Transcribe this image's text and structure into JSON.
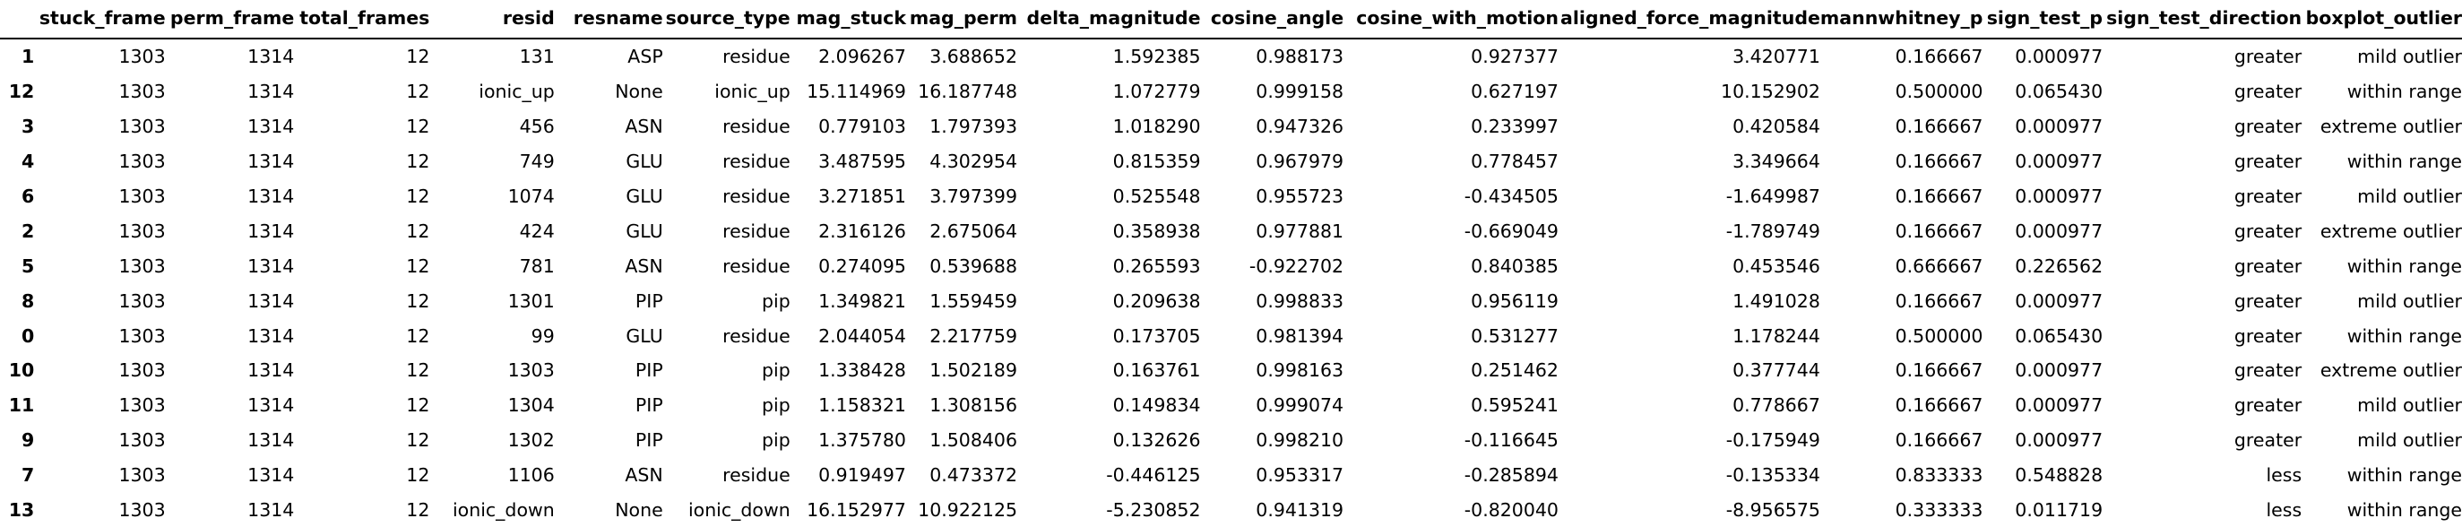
{
  "table": {
    "columns": [
      "",
      "stuck_frame",
      "perm_frame",
      "total_frames",
      "resid",
      "resname",
      "source_type",
      "mag_stuck",
      "mag_perm",
      "delta_magnitude",
      "cosine_angle",
      "cosine_with_motion",
      "aligned_force_magnitude",
      "mannwhitney_p",
      "sign_test_p",
      "sign_test_direction",
      "boxplot_outlier"
    ],
    "rows": [
      [
        "1",
        "1303",
        "1314",
        "12",
        "131",
        "ASP",
        "residue",
        "2.096267",
        "3.688652",
        "1.592385",
        "0.988173",
        "0.927377",
        "3.420771",
        "0.166667",
        "0.000977",
        "greater",
        "mild outlier"
      ],
      [
        "12",
        "1303",
        "1314",
        "12",
        "ionic_up",
        "None",
        "ionic_up",
        "15.114969",
        "16.187748",
        "1.072779",
        "0.999158",
        "0.627197",
        "10.152902",
        "0.500000",
        "0.065430",
        "greater",
        "within range"
      ],
      [
        "3",
        "1303",
        "1314",
        "12",
        "456",
        "ASN",
        "residue",
        "0.779103",
        "1.797393",
        "1.018290",
        "0.947326",
        "0.233997",
        "0.420584",
        "0.166667",
        "0.000977",
        "greater",
        "extreme outlier"
      ],
      [
        "4",
        "1303",
        "1314",
        "12",
        "749",
        "GLU",
        "residue",
        "3.487595",
        "4.302954",
        "0.815359",
        "0.967979",
        "0.778457",
        "3.349664",
        "0.166667",
        "0.000977",
        "greater",
        "within range"
      ],
      [
        "6",
        "1303",
        "1314",
        "12",
        "1074",
        "GLU",
        "residue",
        "3.271851",
        "3.797399",
        "0.525548",
        "0.955723",
        "-0.434505",
        "-1.649987",
        "0.166667",
        "0.000977",
        "greater",
        "mild outlier"
      ],
      [
        "2",
        "1303",
        "1314",
        "12",
        "424",
        "GLU",
        "residue",
        "2.316126",
        "2.675064",
        "0.358938",
        "0.977881",
        "-0.669049",
        "-1.789749",
        "0.166667",
        "0.000977",
        "greater",
        "extreme outlier"
      ],
      [
        "5",
        "1303",
        "1314",
        "12",
        "781",
        "ASN",
        "residue",
        "0.274095",
        "0.539688",
        "0.265593",
        "-0.922702",
        "0.840385",
        "0.453546",
        "0.666667",
        "0.226562",
        "greater",
        "within range"
      ],
      [
        "8",
        "1303",
        "1314",
        "12",
        "1301",
        "PIP",
        "pip",
        "1.349821",
        "1.559459",
        "0.209638",
        "0.998833",
        "0.956119",
        "1.491028",
        "0.166667",
        "0.000977",
        "greater",
        "mild outlier"
      ],
      [
        "0",
        "1303",
        "1314",
        "12",
        "99",
        "GLU",
        "residue",
        "2.044054",
        "2.217759",
        "0.173705",
        "0.981394",
        "0.531277",
        "1.178244",
        "0.500000",
        "0.065430",
        "greater",
        "within range"
      ],
      [
        "10",
        "1303",
        "1314",
        "12",
        "1303",
        "PIP",
        "pip",
        "1.338428",
        "1.502189",
        "0.163761",
        "0.998163",
        "0.251462",
        "0.377744",
        "0.166667",
        "0.000977",
        "greater",
        "extreme outlier"
      ],
      [
        "11",
        "1303",
        "1314",
        "12",
        "1304",
        "PIP",
        "pip",
        "1.158321",
        "1.308156",
        "0.149834",
        "0.999074",
        "0.595241",
        "0.778667",
        "0.166667",
        "0.000977",
        "greater",
        "mild outlier"
      ],
      [
        "9",
        "1303",
        "1314",
        "12",
        "1302",
        "PIP",
        "pip",
        "1.375780",
        "1.508406",
        "0.132626",
        "0.998210",
        "-0.116645",
        "-0.175949",
        "0.166667",
        "0.000977",
        "greater",
        "mild outlier"
      ],
      [
        "7",
        "1303",
        "1314",
        "12",
        "1106",
        "ASN",
        "residue",
        "0.919497",
        "0.473372",
        "-0.446125",
        "0.953317",
        "-0.285894",
        "-0.135334",
        "0.833333",
        "0.548828",
        "less",
        "within range"
      ],
      [
        "13",
        "1303",
        "1314",
        "12",
        "ionic_down",
        "None",
        "ionic_down",
        "16.152977",
        "10.922125",
        "-5.230852",
        "0.941319",
        "-0.820040",
        "-8.956575",
        "0.333333",
        "0.011719",
        "less",
        "within range"
      ]
    ]
  }
}
